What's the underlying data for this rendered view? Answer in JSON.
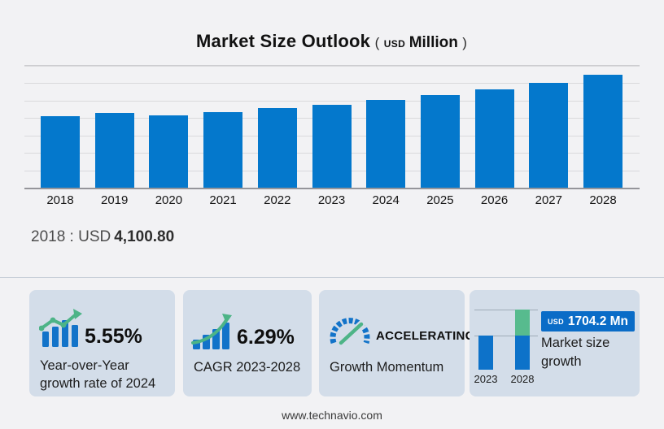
{
  "title": {
    "main": "Market Size Outlook",
    "open_paren": "(",
    "currency": "USD",
    "unit": "Million",
    "close_paren": ")"
  },
  "chart_data": [
    {
      "type": "bar",
      "title": "Market Size Outlook (USD Million)",
      "categories": [
        "2018",
        "2019",
        "2020",
        "2021",
        "2022",
        "2023",
        "2024",
        "2025",
        "2026",
        "2027",
        "2028"
      ],
      "values": [
        4100.8,
        4280,
        4150,
        4330,
        4560,
        4774,
        5039,
        5330,
        5650,
        6010,
        6478
      ],
      "ylim": [
        0,
        7000
      ],
      "gridline_step": 1000,
      "grid": true,
      "legend": false,
      "bar_color": "#0478cc",
      "labeled_point": {
        "category": "2018",
        "label": "USD 4,100.80"
      }
    },
    {
      "type": "bar",
      "categories": [
        "2023",
        "2028"
      ],
      "series": [
        {
          "name": "base",
          "values": [
            4774,
            4774
          ],
          "color": "#0d72c9"
        },
        {
          "name": "growth",
          "values": [
            0,
            1704.2
          ],
          "color": "#57bb8e"
        }
      ],
      "delta_label": "USD 1704.2 Mn"
    }
  ],
  "annotation": {
    "prefix": "2018 : USD",
    "value": "4,100.80"
  },
  "cards": [
    {
      "icon": "bar-chart-trend-up-icon",
      "value": "5.55%",
      "line1": "Year-over-Year",
      "line2": "growth rate of 2024"
    },
    {
      "icon": "ascending-bars-arrow-icon",
      "value": "6.29%",
      "line1": "CAGR 2023-2028"
    },
    {
      "icon": "speedometer-icon",
      "value": "ACCELERATING",
      "line1": "Growth Momentum"
    },
    {
      "icon": "mini-growth-chart",
      "badge_currency": "USD",
      "badge_value": "1704.2 Mn",
      "line1": "Market size",
      "line2": "growth",
      "mini_years": [
        "2023",
        "2028"
      ]
    }
  ],
  "footer": {
    "url": "www.technavio.com"
  },
  "colors": {
    "page_bg": "#f2f2f4",
    "bar_blue": "#0478cc",
    "icon_blue": "#1273c9",
    "accent_green": "#4db487",
    "mini_green": "#57bb8e",
    "badge_blue": "#0a6cc7",
    "card_bg": "#d3dde9"
  }
}
